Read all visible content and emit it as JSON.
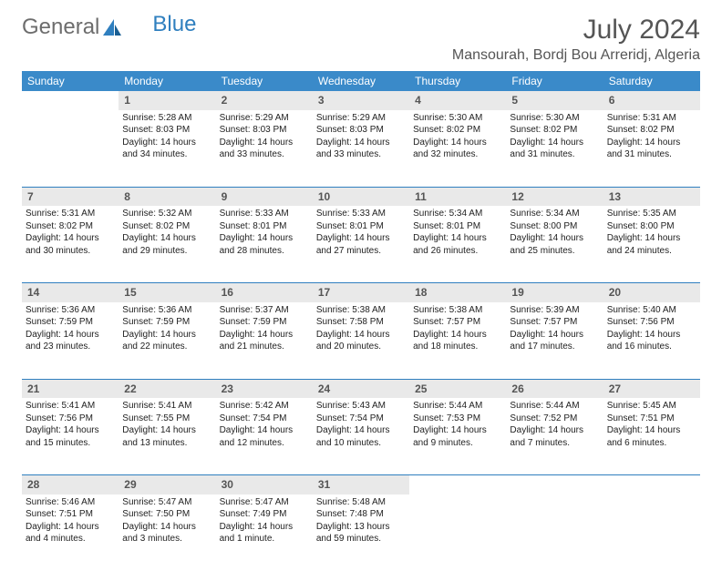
{
  "logo": {
    "text1": "General",
    "text2": "Blue"
  },
  "title": "July 2024",
  "location": "Mansourah, Bordj Bou Arreridj, Algeria",
  "colors": {
    "header_bg": "#3a8ac9",
    "daynum_bg": "#e9e9e9",
    "rule": "#2f7fbf",
    "logo_gray": "#6d6d6d",
    "logo_blue": "#2f7fbf"
  },
  "dayNames": [
    "Sunday",
    "Monday",
    "Tuesday",
    "Wednesday",
    "Thursday",
    "Friday",
    "Saturday"
  ],
  "startOffset": 1,
  "days": [
    {
      "n": 1,
      "sr": "5:28 AM",
      "ss": "8:03 PM",
      "dl": "14 hours and 34 minutes."
    },
    {
      "n": 2,
      "sr": "5:29 AM",
      "ss": "8:03 PM",
      "dl": "14 hours and 33 minutes."
    },
    {
      "n": 3,
      "sr": "5:29 AM",
      "ss": "8:03 PM",
      "dl": "14 hours and 33 minutes."
    },
    {
      "n": 4,
      "sr": "5:30 AM",
      "ss": "8:02 PM",
      "dl": "14 hours and 32 minutes."
    },
    {
      "n": 5,
      "sr": "5:30 AM",
      "ss": "8:02 PM",
      "dl": "14 hours and 31 minutes."
    },
    {
      "n": 6,
      "sr": "5:31 AM",
      "ss": "8:02 PM",
      "dl": "14 hours and 31 minutes."
    },
    {
      "n": 7,
      "sr": "5:31 AM",
      "ss": "8:02 PM",
      "dl": "14 hours and 30 minutes."
    },
    {
      "n": 8,
      "sr": "5:32 AM",
      "ss": "8:02 PM",
      "dl": "14 hours and 29 minutes."
    },
    {
      "n": 9,
      "sr": "5:33 AM",
      "ss": "8:01 PM",
      "dl": "14 hours and 28 minutes."
    },
    {
      "n": 10,
      "sr": "5:33 AM",
      "ss": "8:01 PM",
      "dl": "14 hours and 27 minutes."
    },
    {
      "n": 11,
      "sr": "5:34 AM",
      "ss": "8:01 PM",
      "dl": "14 hours and 26 minutes."
    },
    {
      "n": 12,
      "sr": "5:34 AM",
      "ss": "8:00 PM",
      "dl": "14 hours and 25 minutes."
    },
    {
      "n": 13,
      "sr": "5:35 AM",
      "ss": "8:00 PM",
      "dl": "14 hours and 24 minutes."
    },
    {
      "n": 14,
      "sr": "5:36 AM",
      "ss": "7:59 PM",
      "dl": "14 hours and 23 minutes."
    },
    {
      "n": 15,
      "sr": "5:36 AM",
      "ss": "7:59 PM",
      "dl": "14 hours and 22 minutes."
    },
    {
      "n": 16,
      "sr": "5:37 AM",
      "ss": "7:59 PM",
      "dl": "14 hours and 21 minutes."
    },
    {
      "n": 17,
      "sr": "5:38 AM",
      "ss": "7:58 PM",
      "dl": "14 hours and 20 minutes."
    },
    {
      "n": 18,
      "sr": "5:38 AM",
      "ss": "7:57 PM",
      "dl": "14 hours and 18 minutes."
    },
    {
      "n": 19,
      "sr": "5:39 AM",
      "ss": "7:57 PM",
      "dl": "14 hours and 17 minutes."
    },
    {
      "n": 20,
      "sr": "5:40 AM",
      "ss": "7:56 PM",
      "dl": "14 hours and 16 minutes."
    },
    {
      "n": 21,
      "sr": "5:41 AM",
      "ss": "7:56 PM",
      "dl": "14 hours and 15 minutes."
    },
    {
      "n": 22,
      "sr": "5:41 AM",
      "ss": "7:55 PM",
      "dl": "14 hours and 13 minutes."
    },
    {
      "n": 23,
      "sr": "5:42 AM",
      "ss": "7:54 PM",
      "dl": "14 hours and 12 minutes."
    },
    {
      "n": 24,
      "sr": "5:43 AM",
      "ss": "7:54 PM",
      "dl": "14 hours and 10 minutes."
    },
    {
      "n": 25,
      "sr": "5:44 AM",
      "ss": "7:53 PM",
      "dl": "14 hours and 9 minutes."
    },
    {
      "n": 26,
      "sr": "5:44 AM",
      "ss": "7:52 PM",
      "dl": "14 hours and 7 minutes."
    },
    {
      "n": 27,
      "sr": "5:45 AM",
      "ss": "7:51 PM",
      "dl": "14 hours and 6 minutes."
    },
    {
      "n": 28,
      "sr": "5:46 AM",
      "ss": "7:51 PM",
      "dl": "14 hours and 4 minutes."
    },
    {
      "n": 29,
      "sr": "5:47 AM",
      "ss": "7:50 PM",
      "dl": "14 hours and 3 minutes."
    },
    {
      "n": 30,
      "sr": "5:47 AM",
      "ss": "7:49 PM",
      "dl": "14 hours and 1 minute."
    },
    {
      "n": 31,
      "sr": "5:48 AM",
      "ss": "7:48 PM",
      "dl": "13 hours and 59 minutes."
    }
  ],
  "labels": {
    "sunrise": "Sunrise: ",
    "sunset": "Sunset: ",
    "daylight": "Daylight: "
  }
}
